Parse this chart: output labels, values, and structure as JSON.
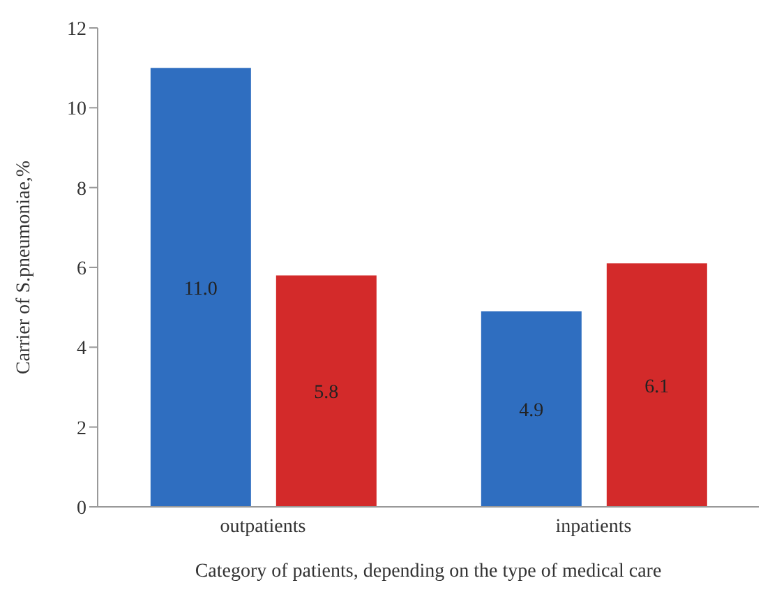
{
  "chart_data": {
    "type": "bar",
    "xlabel": "Category of patients, depending on the type of medical care",
    "ylabel": "Carrier of S.pneumoniae,%",
    "categories": [
      "outpatients",
      "inpatients"
    ],
    "series": [
      {
        "color": "#2f6ec0",
        "values": [
          11.0,
          4.9
        ],
        "value_labels": [
          "11.0",
          "4.9"
        ]
      },
      {
        "color": "#d32a2a",
        "values": [
          5.8,
          6.1
        ],
        "value_labels": [
          "5.8",
          "6.1"
        ]
      }
    ],
    "ylim": [
      0,
      12
    ],
    "yticks": [
      0,
      2,
      4,
      6,
      8,
      10,
      12
    ],
    "grid": false,
    "legend": false
  }
}
